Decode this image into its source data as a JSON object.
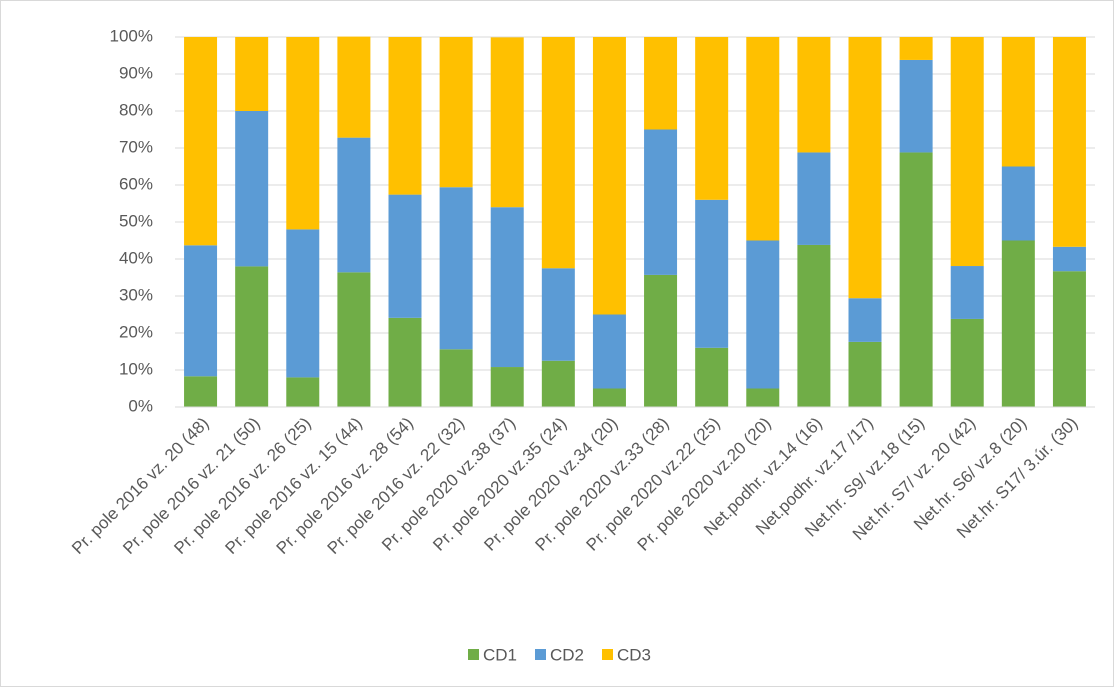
{
  "chart_data": {
    "type": "stacked_bar",
    "categories": [
      "Pr. pole 2016  vz. 20 (48)",
      "Pr. pole 2016  vz. 21 (50)",
      "Pr. pole 2016  vz. 26 (25)",
      "Pr. pole 2016  vz. 15 (44)",
      "Pr. pole 2016  vz. 28 (54)",
      "Pr. pole 2016  vz. 22 (32)",
      "Pr. pole 2020 vz.38 (37)",
      "Pr. pole 2020 vz.35 (24)",
      "Pr. pole 2020 vz.34 (20)",
      "Pr. pole 2020 vz.33 (28)",
      "Pr. pole 2020 vz.22 (25)",
      "Pr. pole 2020 vz.20 (20)",
      "Net.podhr. vz.14 (16)",
      "Net.podhr. vz.17 /17)",
      "Net.hr. S9/ vz.18 (15)",
      "Net.hr. S7/ vz. 20 (42)",
      "Net.hr. S6/ vz.8 (20)",
      "Net.hr. S17/ 3.úr. (30)"
    ],
    "series": [
      {
        "name": "CD1",
        "color": "#70ad47",
        "values": [
          8.3,
          38,
          8,
          36.4,
          24.1,
          15.6,
          10.8,
          12.5,
          5,
          35.7,
          16,
          5,
          43.8,
          17.6,
          68.8,
          23.8,
          45,
          36.7
        ]
      },
      {
        "name": "CD2",
        "color": "#5b9bd5",
        "values": [
          35.4,
          42,
          40,
          36.4,
          33.3,
          43.8,
          43.2,
          25,
          20,
          39.3,
          40,
          40,
          25,
          11.8,
          25,
          14.3,
          20,
          6.6
        ]
      },
      {
        "name": "CD3",
        "color": "#ffc000",
        "values": [
          56.3,
          20,
          52,
          27.3,
          42.6,
          40.6,
          45.9,
          62.5,
          75,
          25,
          44,
          55,
          31.2,
          70.6,
          6.2,
          61.9,
          35,
          56.7
        ]
      }
    ],
    "ylim": [
      0,
      100
    ],
    "yticks": [
      {
        "value": 0,
        "label": "0%"
      },
      {
        "value": 10,
        "label": "10%"
      },
      {
        "value": 20,
        "label": "20%"
      },
      {
        "value": 30,
        "label": "30%"
      },
      {
        "value": 40,
        "label": "40%"
      },
      {
        "value": 50,
        "label": "50%"
      },
      {
        "value": 60,
        "label": "60%"
      },
      {
        "value": 70,
        "label": "70%"
      },
      {
        "value": 80,
        "label": "80%"
      },
      {
        "value": 90,
        "label": "90%"
      },
      {
        "value": 100,
        "label": "100%"
      }
    ],
    "grid": true,
    "legend": "bottom"
  }
}
